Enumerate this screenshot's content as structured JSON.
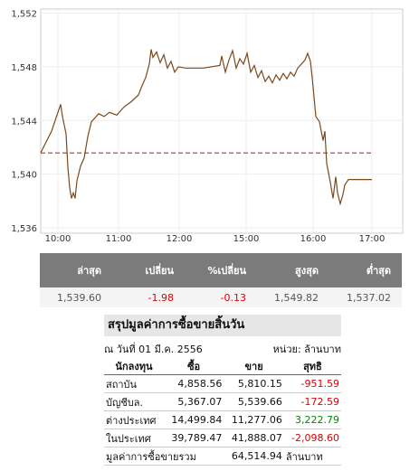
{
  "chart_data": {
    "type": "line",
    "color": "#7a4a1e",
    "ref_line": 1541.58,
    "ref_color": "#a33",
    "grid": true,
    "x": [
      0,
      3,
      4.75,
      5.5,
      6,
      7,
      7.5,
      8,
      8.5,
      9,
      9.5,
      10,
      11,
      12,
      13,
      14,
      15,
      16,
      17.5,
      19,
      21,
      23,
      25,
      27,
      28,
      29,
      30,
      30.5,
      31,
      32,
      33,
      34,
      35,
      36,
      37,
      38,
      40,
      45,
      49.5,
      50,
      51,
      52,
      53,
      54,
      55,
      56,
      57,
      58,
      59,
      60,
      61,
      62,
      63,
      64,
      65,
      66,
      67,
      68,
      69,
      70,
      71,
      72,
      73,
      73.75,
      74.5,
      75,
      76,
      77,
      78,
      78.5,
      79,
      80,
      80.75,
      81.5,
      82,
      82.75,
      83.5,
      84,
      85,
      91.5
    ],
    "values": [
      1541.6,
      1543.2,
      1544.6,
      1545.2,
      1544.3,
      1543,
      1540.5,
      1539,
      1538.2,
      1538.6,
      1538.2,
      1539.5,
      1540.6,
      1541.2,
      1542.8,
      1543.9,
      1544.2,
      1544.5,
      1544.3,
      1544.6,
      1544.4,
      1545,
      1545.4,
      1545.9,
      1546.6,
      1547.2,
      1548.2,
      1549.3,
      1548.7,
      1549.1,
      1548.3,
      1548.9,
      1547.9,
      1548.4,
      1547.6,
      1548,
      1547.9,
      1547.9,
      1548.1,
      1548.8,
      1547.6,
      1548.5,
      1549.2,
      1547.9,
      1548.6,
      1548.2,
      1549,
      1547.6,
      1548.1,
      1547.2,
      1547.7,
      1546.9,
      1547.3,
      1546.8,
      1547.4,
      1547,
      1547.5,
      1547.1,
      1547.6,
      1547.3,
      1547.9,
      1548.2,
      1548.5,
      1549,
      1548.4,
      1547.2,
      1544.3,
      1543.9,
      1542.5,
      1543.2,
      1540.8,
      1539.4,
      1538.2,
      1539.8,
      1538.6,
      1537.8,
      1538.5,
      1539.2,
      1539.6,
      1539.6
    ],
    "xlim": [
      0,
      100
    ],
    "xticks": [
      {
        "value": 4.75,
        "label": "10:00"
      },
      {
        "value": 21.5,
        "label": "11:00"
      },
      {
        "value": 38.25,
        "label": "12:00"
      },
      {
        "value": 56.75,
        "label": "15:00"
      },
      {
        "value": 75.25,
        "label": "16:00"
      },
      {
        "value": 91.5,
        "label": "17:00"
      }
    ],
    "ylim": [
      1535.6,
      1552.3
    ],
    "yticks": [
      {
        "value": 1536,
        "label": "1,536"
      },
      {
        "value": 1540,
        "label": "1,540"
      },
      {
        "value": 1544,
        "label": "1,544"
      },
      {
        "value": 1548,
        "label": "1,548"
      },
      {
        "value": 1552,
        "label": "1,552"
      }
    ]
  },
  "quote": {
    "headers": [
      "ล่าสุด",
      "เปลี่ยน",
      "%เปลี่ยน",
      "สูงสุด",
      "ต่ำสุด"
    ],
    "values": [
      "1,539.60",
      "-1.98",
      "-0.13",
      "1,549.82",
      "1,537.02"
    ]
  },
  "summary": {
    "title": "สรุปมูลค่าการซื้อขายสิ้นวัน",
    "date": "ณ วันที่ 01 มี.ค. 2556",
    "unit": "หน่วย: ล้านบาท",
    "headers": [
      "นักลงทุน",
      "ซื้อ",
      "ขาย",
      "สุทธิ"
    ],
    "rows": [
      [
        "สถาบัน",
        "4,858.56",
        "5,810.15",
        "-951.59"
      ],
      [
        "บัญชีบล.",
        "5,367.07",
        "5,539.66",
        "-172.59"
      ],
      [
        "ต่างประเทศ",
        "14,499.84",
        "11,277.06",
        "3,222.79"
      ],
      [
        "ในประเทศ",
        "39,789.47",
        "41,888.07",
        "-2,098.60"
      ]
    ],
    "total_label": "มูลค่าการซื้อขายรวม",
    "total_value": "64,514.94",
    "total_unit": "ล้านบาท"
  }
}
